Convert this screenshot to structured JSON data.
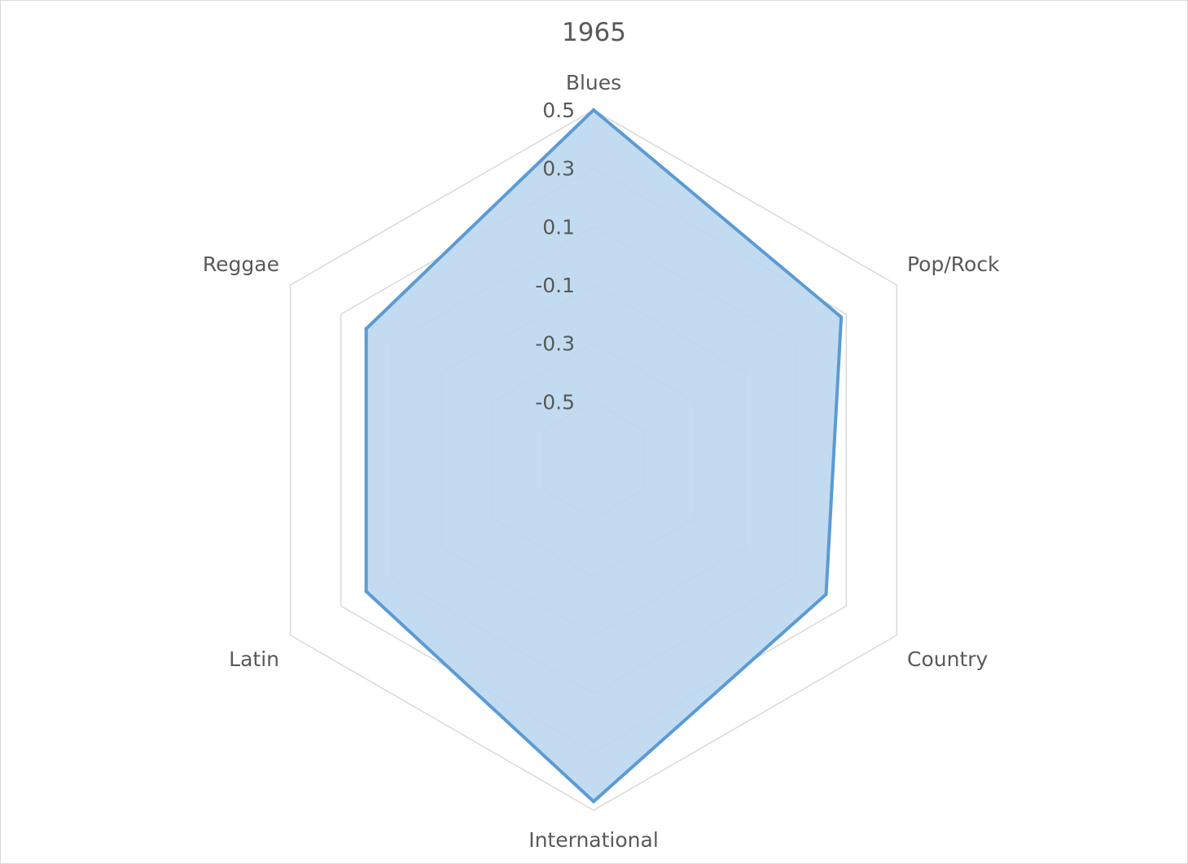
{
  "chart_data": {
    "type": "radar",
    "title": "1965",
    "categories": [
      "Blues",
      "Pop/Rock",
      "Country",
      "International",
      "Latin",
      "Reggae"
    ],
    "series": [
      {
        "values": [
          0.5,
          0.28,
          0.22,
          0.47,
          0.2,
          0.2
        ]
      }
    ],
    "ticks": [
      "0.5",
      "0.3",
      "0.1",
      "-0.1",
      "-0.3",
      "-0.5"
    ],
    "rlim": [
      -0.7,
      0.5
    ],
    "grid": true,
    "legend": "none",
    "colors": {
      "series_line": "#5b9bd5",
      "series_fill": "#bdd7ee",
      "grid": "#d9d9d9",
      "text": "#595959"
    }
  }
}
